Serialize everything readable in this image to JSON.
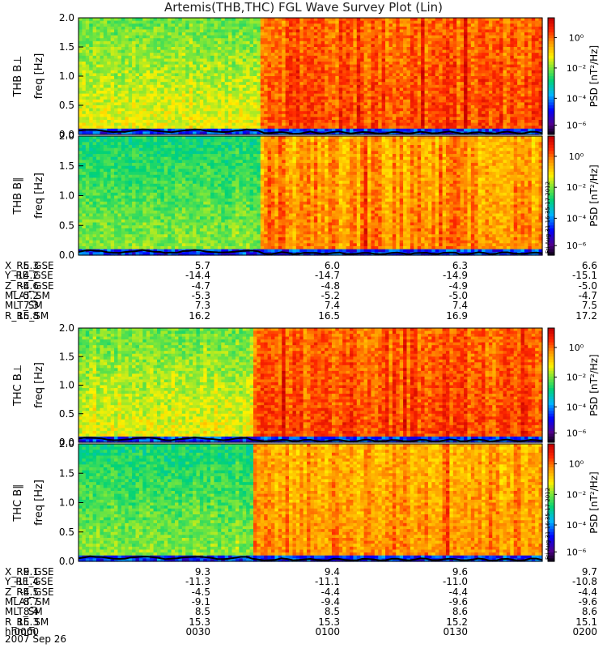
{
  "title": "Artemis(THB,THC) FGL Wave Survey Plot (Lin)",
  "colorbar": {
    "label": "PSD [nT²/Hz]",
    "ticks": [
      "10⁰",
      "10⁻²",
      "10⁻⁴",
      "10⁻⁶"
    ]
  },
  "stamp": "Fri Aug 31 16:35:17 2012",
  "date": "2007 Sep 26",
  "colors": {
    "hi": "#e60000",
    "mid": "#ffd400",
    "low": "#28d26e",
    "trace": "#000000"
  },
  "chart_data": [
    {
      "type": "heatmap",
      "ylabel": "THB B⊥",
      "yunit": "freq [Hz]",
      "yticks": [
        "2.0",
        "1.5",
        "1.0",
        "0.5",
        "0.0"
      ],
      "ylim": [
        0,
        2.0
      ],
      "transition_frac": 0.39,
      "left_level": "low-to-mid",
      "right_level": "high"
    },
    {
      "type": "heatmap",
      "ylabel": "THB B∥",
      "yunit": "freq [Hz]",
      "yticks": [
        "2.0",
        "1.5",
        "1.0",
        "0.5",
        "0.0"
      ],
      "ylim": [
        0,
        2.0
      ],
      "transition_frac": 0.39,
      "left_level": "low",
      "right_level": "mid-to-high"
    },
    {
      "type": "heatmap",
      "ylabel": "THC B⊥",
      "yunit": "freq [Hz]",
      "yticks": [
        "2.0",
        "1.5",
        "1.0",
        "0.5",
        "0.0"
      ],
      "ylim": [
        0,
        2.0
      ],
      "transition_frac": 0.37,
      "left_level": "low-to-mid",
      "right_level": "high"
    },
    {
      "type": "heatmap",
      "ylabel": "THC B∥",
      "yunit": "freq [Hz]",
      "yticks": [
        "2.0",
        "1.5",
        "1.0",
        "0.5",
        "0.0"
      ],
      "ylim": [
        0,
        2.0
      ],
      "transition_frac": 0.37,
      "left_level": "low",
      "right_level": "mid-to-high"
    }
  ],
  "orbit_thb": {
    "rows": [
      {
        "label": "X_RE_GSE",
        "values": [
          "5.3",
          "5.7",
          "6.0",
          "6.3",
          "6.6"
        ]
      },
      {
        "label": "Y_RE_GSE",
        "values": [
          "-14.2",
          "-14.4",
          "-14.7",
          "-14.9",
          "-15.1"
        ]
      },
      {
        "label": "Z_RE_GSE",
        "values": [
          "-4.6",
          "-4.7",
          "-4.8",
          "-4.9",
          "-5.0"
        ]
      },
      {
        "label": "MLAT_SM",
        "values": [
          "-5.2",
          "-5.3",
          "-5.2",
          "-5.0",
          "-4.7"
        ]
      },
      {
        "label": "MLT_SM",
        "values": [
          "7.3",
          "7.3",
          "7.4",
          "7.4",
          "7.5"
        ]
      },
      {
        "label": "R_RE_SM",
        "values": [
          "15.8",
          "16.2",
          "16.5",
          "16.9",
          "17.2"
        ]
      }
    ]
  },
  "orbit_thc": {
    "rows": [
      {
        "label": "X_RE_GSE",
        "values": [
          "9.1",
          "9.3",
          "9.4",
          "9.6",
          "9.7"
        ]
      },
      {
        "label": "Y_RE_GSE",
        "values": [
          "-11.4",
          "-11.3",
          "-11.1",
          "-11.0",
          "-10.8"
        ]
      },
      {
        "label": "Z_RE_GSE",
        "values": [
          "-4.5",
          "-4.5",
          "-4.4",
          "-4.4",
          "-4.4"
        ]
      },
      {
        "label": "MLAT_SM",
        "values": [
          "-8.7",
          "-9.1",
          "-9.4",
          "-9.6",
          "-9.6"
        ]
      },
      {
        "label": "MLT_SM",
        "values": [
          "8.4",
          "8.5",
          "8.5",
          "8.6",
          "8.6"
        ]
      },
      {
        "label": "R_RE_SM",
        "values": [
          "15.3",
          "15.3",
          "15.3",
          "15.2",
          "15.1"
        ]
      },
      {
        "label": "hhmm",
        "values": [
          "0000",
          "0030",
          "0100",
          "0130",
          "0200"
        ]
      }
    ]
  }
}
